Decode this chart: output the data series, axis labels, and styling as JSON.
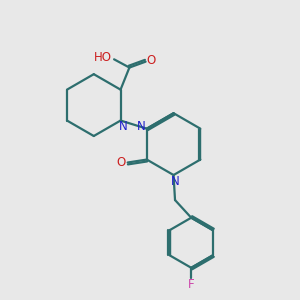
{
  "background_color": "#e8e8e8",
  "bond_color": "#2d6e6e",
  "N_color": "#2020cc",
  "O_color": "#cc2020",
  "F_color": "#cc44aa",
  "line_width": 1.6,
  "font_size": 8.5,
  "fig_width": 3.0,
  "fig_height": 3.0,
  "xlim": [
    0,
    10
  ],
  "ylim": [
    0,
    10
  ]
}
